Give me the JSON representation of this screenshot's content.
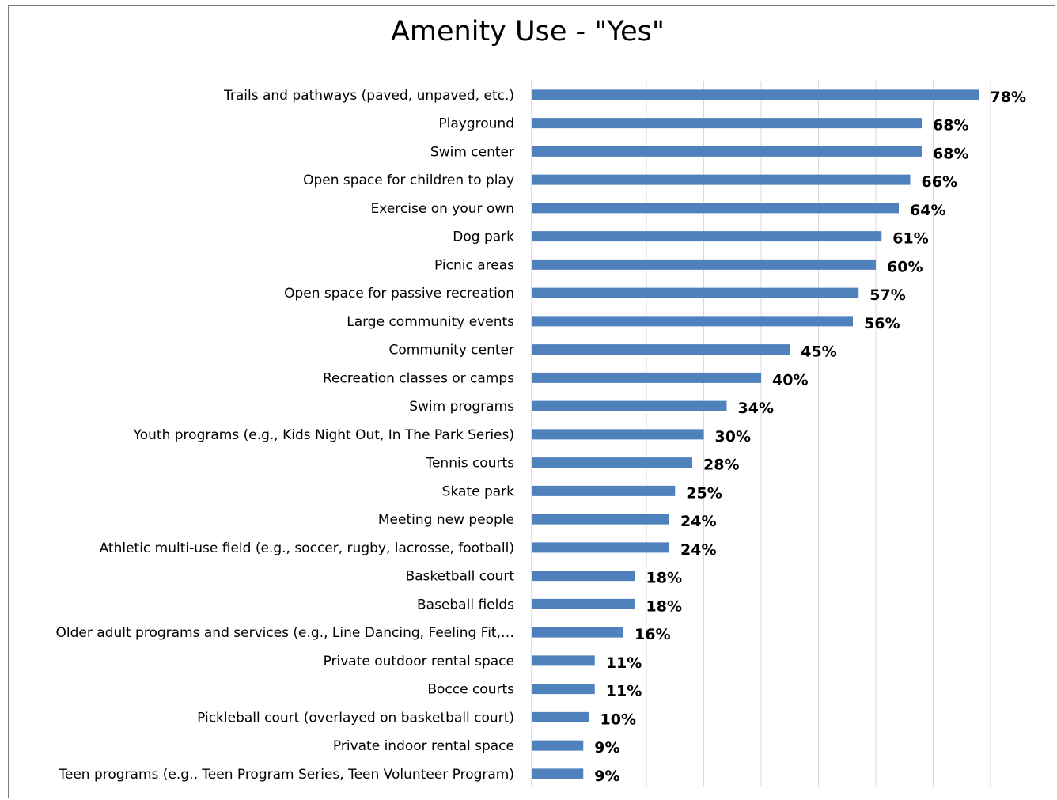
{
  "chart_data": {
    "type": "bar",
    "orientation": "horizontal",
    "title": "Amenity Use - \"Yes\"",
    "xlabel": "",
    "ylabel": "",
    "xlim": [
      0,
      90
    ],
    "grid": "vertical",
    "bar_color": "#4f81bd",
    "value_suffix": "%",
    "categories": [
      "Trails and pathways (paved, unpaved, etc.)",
      "Playground",
      "Swim center",
      "Open space for children to play",
      "Exercise on your own",
      "Dog park",
      "Picnic areas",
      "Open space for passive recreation",
      "Large community events",
      "Community center",
      "Recreation classes or camps",
      "Swim programs",
      "Youth programs (e.g., Kids Night Out, In The Park Series)",
      "Tennis courts",
      "Skate park",
      "Meeting new people",
      "Athletic multi-use field (e.g., soccer, rugby, lacrosse, football)",
      "Basketball court",
      "Baseball fields",
      "Older adult programs and services (e.g., Line Dancing, Feeling Fit,…",
      "Private outdoor rental space",
      "Bocce courts",
      "Pickleball court (overlayed on basketball court)",
      "Private indoor rental space",
      "Teen programs (e.g., Teen Program Series, Teen Volunteer Program)"
    ],
    "values": [
      78,
      68,
      68,
      66,
      64,
      61,
      60,
      57,
      56,
      45,
      40,
      34,
      30,
      28,
      25,
      24,
      24,
      18,
      18,
      16,
      11,
      11,
      10,
      9,
      9
    ],
    "value_labels": [
      "78%",
      "68%",
      "68%",
      "66%",
      "64%",
      "61%",
      "60%",
      "57%",
      "56%",
      "45%",
      "40%",
      "34%",
      "30%",
      "28%",
      "25%",
      "24%",
      "24%",
      "18%",
      "18%",
      "16%",
      "11%",
      "11%",
      "10%",
      "9%",
      "9%"
    ]
  }
}
